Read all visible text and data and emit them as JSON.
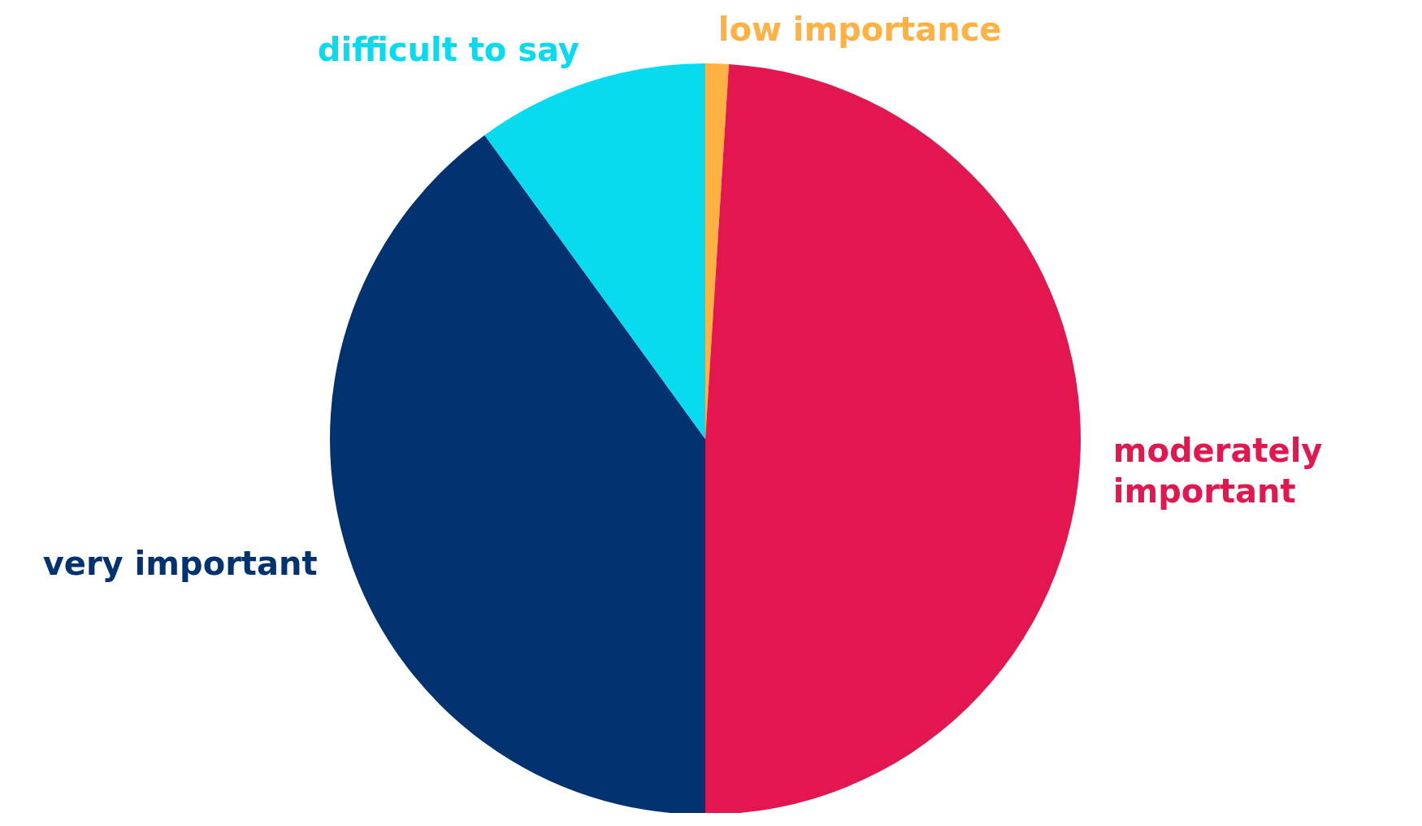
{
  "chart_data": {
    "type": "pie",
    "categories": [
      "low importance",
      "moderately important",
      "very important",
      "difficult to say"
    ],
    "values": [
      1,
      49,
      40,
      10
    ],
    "colors": [
      "#ffb142",
      "#e31650",
      "#033270",
      "#08dbf0"
    ]
  }
}
